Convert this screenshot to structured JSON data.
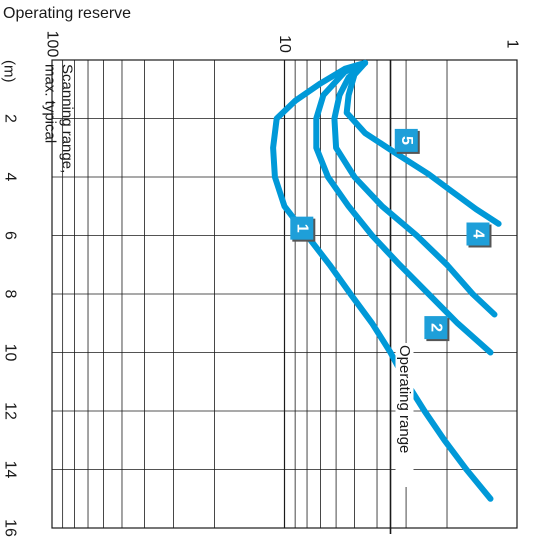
{
  "chart_data": {
    "type": "line",
    "title": "",
    "xlabel": "Operating reserve",
    "x_scale": "log",
    "xlim": [
      1,
      100
    ],
    "x_ticks": [
      1,
      10,
      100
    ],
    "x_tick_labels": [
      "1",
      "10",
      "100"
    ],
    "ylabel": "(m)",
    "ylim": [
      0,
      16
    ],
    "y_ticks": [
      2,
      4,
      6,
      8,
      10,
      12,
      14,
      16
    ],
    "y_tick_labels": [
      "2",
      "4",
      "6",
      "8",
      "10",
      "12",
      "14",
      "16"
    ],
    "grid": true,
    "annotations": {
      "scanning_range_line1": "Scanning range,",
      "scanning_range_line2": "max. typical",
      "operating_range": "Operating range"
    },
    "series": [
      {
        "name": "1",
        "color": "#0099d8",
        "points": [
          [
            4.5,
            0.1
          ],
          [
            5.5,
            0.3
          ],
          [
            7,
            0.8
          ],
          [
            9,
            1.4
          ],
          [
            10.8,
            2
          ],
          [
            11.2,
            3
          ],
          [
            11,
            4
          ],
          [
            10,
            5
          ],
          [
            8,
            6
          ],
          [
            6.4,
            7
          ],
          [
            5.2,
            8
          ],
          [
            4.2,
            9
          ],
          [
            3.5,
            10
          ],
          [
            3,
            11
          ],
          [
            2.5,
            12
          ],
          [
            2.05,
            13
          ],
          [
            1.65,
            14
          ],
          [
            1.3,
            15
          ]
        ]
      },
      {
        "name": "2",
        "color": "#0099d8",
        "points": [
          [
            4.5,
            0.1
          ],
          [
            5.5,
            0.4
          ],
          [
            6.8,
            1.2
          ],
          [
            7.3,
            2
          ],
          [
            7.3,
            3
          ],
          [
            6.5,
            4
          ],
          [
            5.3,
            5
          ],
          [
            4.2,
            6
          ],
          [
            3.2,
            7
          ],
          [
            2.4,
            8
          ],
          [
            1.8,
            9
          ],
          [
            1.3,
            10
          ]
        ]
      },
      {
        "name": "4",
        "color": "#0099d8",
        "points": [
          [
            4.5,
            0.1
          ],
          [
            5.3,
            0.6
          ],
          [
            5.8,
            1.2
          ],
          [
            6.1,
            2
          ],
          [
            6,
            3
          ],
          [
            5,
            4
          ],
          [
            3.8,
            5
          ],
          [
            2.7,
            6
          ],
          [
            2,
            7
          ],
          [
            1.55,
            8
          ],
          [
            1.25,
            8.7
          ]
        ]
      },
      {
        "name": "5",
        "color": "#0099d8",
        "points": [
          [
            4.5,
            0.1
          ],
          [
            5,
            0.5
          ],
          [
            5.3,
            1.2
          ],
          [
            5.4,
            1.8
          ],
          [
            4.5,
            2.5
          ],
          [
            3.3,
            3.2
          ],
          [
            2.4,
            3.9
          ],
          [
            1.9,
            4.5
          ],
          [
            1.5,
            5.1
          ],
          [
            1.2,
            5.6
          ]
        ]
      }
    ],
    "series_labels": [
      {
        "name": "1",
        "x": 8.3,
        "y": 5.8
      },
      {
        "name": "2",
        "x": 2.2,
        "y": 9.2
      },
      {
        "name": "4",
        "x": 1.45,
        "y": 6.0
      },
      {
        "name": "5",
        "x": 2.95,
        "y": 2.8
      }
    ],
    "operating_range_x": 3.5
  }
}
